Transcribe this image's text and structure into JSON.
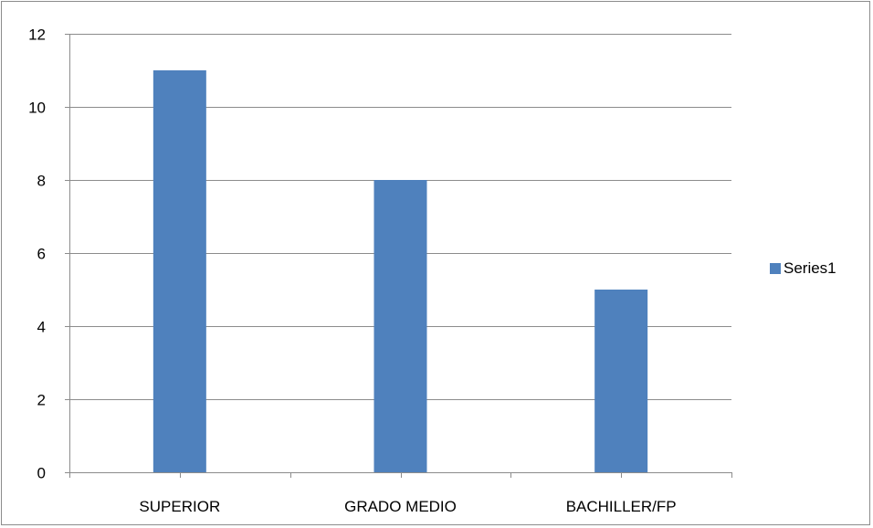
{
  "chart_data": {
    "type": "bar",
    "title": "",
    "xlabel": "",
    "ylabel": "",
    "categories": [
      "SUPERIOR",
      "GRADO MEDIO",
      "BACHILLER/FP"
    ],
    "series": [
      {
        "name": "Series1",
        "values": [
          11,
          8,
          5
        ],
        "color": "#4F81BD"
      }
    ],
    "ylim": [
      0,
      12
    ],
    "yticks": [
      0,
      2,
      4,
      6,
      8,
      10,
      12
    ],
    "grid": true,
    "legend": "right"
  }
}
